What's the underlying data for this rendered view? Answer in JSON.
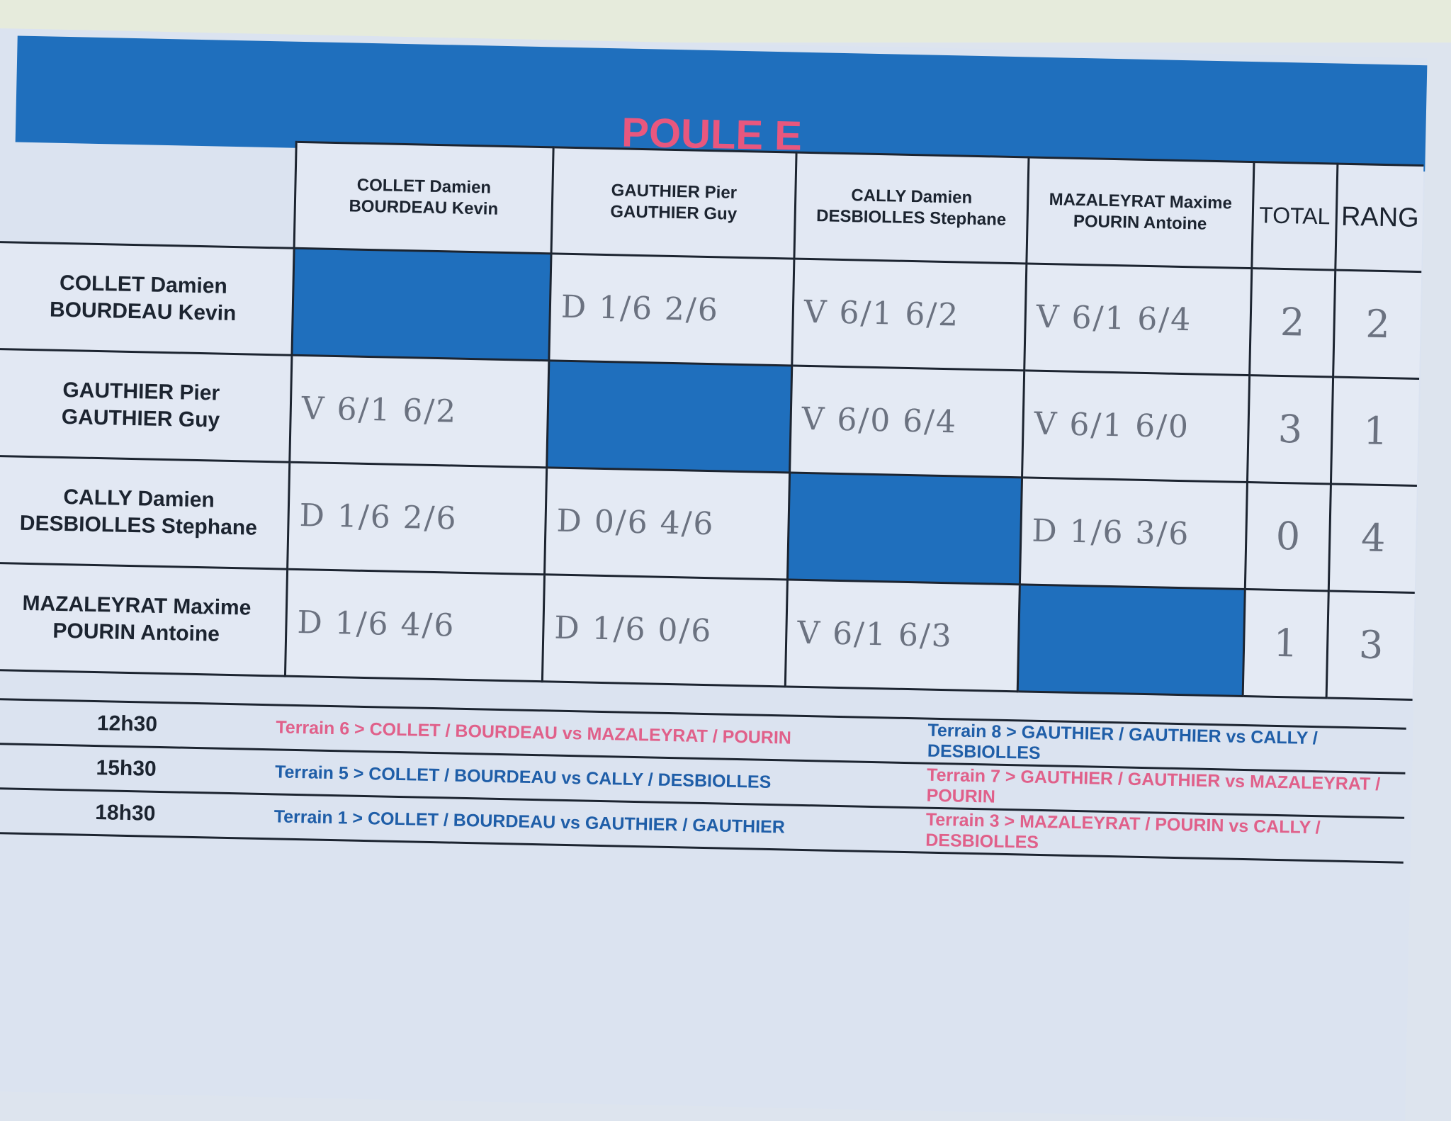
{
  "title": "POULE E",
  "colors": {
    "band": "#1f6fbd",
    "title": "#e8577e",
    "pink": "#e0608a",
    "blue": "#1f5ea8"
  },
  "teams": [
    {
      "line1": "COLLET Damien",
      "line2": "BOURDEAU Kevin"
    },
    {
      "line1": "GAUTHIER Pier",
      "line2": "GAUTHIER Guy"
    },
    {
      "line1": "CALLY Damien",
      "line2": "DESBIOLLES Stephane"
    },
    {
      "line1": "MAZALEYRAT Maxime",
      "line2": "POURIN Antoine"
    }
  ],
  "total_label": "TOTAL",
  "rang_label": "RANG",
  "results": [
    [
      "",
      "D 1/6 2/6",
      "V 6/1 6/2",
      "V 6/1 6/4"
    ],
    [
      "V 6/1 6/2",
      "",
      "V 6/0 6/4",
      "V 6/1 6/0"
    ],
    [
      "D 1/6 2/6",
      "D 0/6 4/6",
      "",
      "D 1/6 3/6"
    ],
    [
      "D 1/6 4/6",
      "D 1/6 0/6",
      "V 6/1 6/3",
      ""
    ]
  ],
  "totals": [
    "2",
    "3",
    "0",
    "1"
  ],
  "rangs": [
    "2",
    "1",
    "4",
    "3"
  ],
  "schedule": [
    {
      "time": "12h30",
      "match1": "Terrain 6 > COLLET / BOURDEAU vs MAZALEYRAT / POURIN",
      "match2": "Terrain 8 > GAUTHIER / GAUTHIER vs CALLY / DESBIOLLES"
    },
    {
      "time": "15h30",
      "match1": "Terrain 5 > COLLET / BOURDEAU vs CALLY / DESBIOLLES",
      "match2": "Terrain 7 > GAUTHIER / GAUTHIER vs MAZALEYRAT / POURIN"
    },
    {
      "time": "18h30",
      "match1": "Terrain 1 > COLLET / BOURDEAU vs GAUTHIER / GAUTHIER",
      "match2": "Terrain 3 > MAZALEYRAT / POURIN vs CALLY / DESBIOLLES"
    }
  ]
}
